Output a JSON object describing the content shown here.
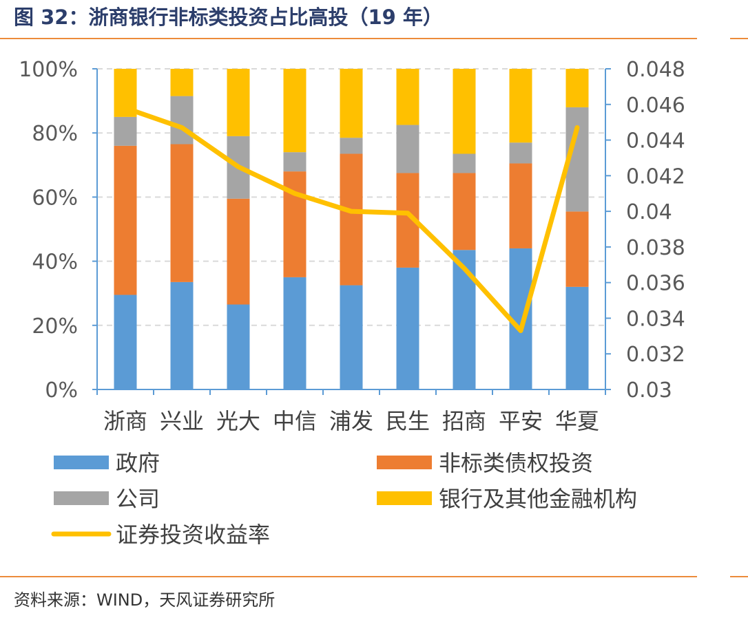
{
  "header": {
    "title": "图 32：浙商银行非标类投资占比高投（19 年）"
  },
  "footer": {
    "source": "资料来源：WIND，天风证券研究所"
  },
  "chart_data": {
    "type": "bar",
    "stacked": true,
    "percent_stacked": true,
    "categories": [
      "浙商",
      "兴业",
      "光大",
      "中信",
      "浦发",
      "民生",
      "招商",
      "平安",
      "华夏"
    ],
    "series": [
      {
        "name": "政府",
        "color": "#5b9bd5",
        "values": [
          29.5,
          33.5,
          26.5,
          35.0,
          32.5,
          38.0,
          43.5,
          44.0,
          32.0
        ]
      },
      {
        "name": "非标类债权投资",
        "color": "#ed7d31",
        "values": [
          46.5,
          43.0,
          33.0,
          33.0,
          41.0,
          29.5,
          24.0,
          26.5,
          23.5
        ]
      },
      {
        "name": "公司",
        "color": "#a5a5a5",
        "values": [
          9.0,
          15.0,
          19.5,
          6.0,
          5.0,
          15.0,
          6.0,
          6.5,
          32.5
        ]
      },
      {
        "name": "银行及其他金融机构",
        "color": "#ffc000",
        "values": [
          15.0,
          8.5,
          21.0,
          26.0,
          21.5,
          17.5,
          26.5,
          23.0,
          12.0
        ]
      }
    ],
    "line_series": {
      "name": "证券投资收益率",
      "color": "#ffc000",
      "axis": "right",
      "values": [
        0.0458,
        0.0447,
        0.0425,
        0.041,
        0.04,
        0.0399,
        0.0368,
        0.0333,
        0.0447
      ]
    },
    "y_left": {
      "min": 0,
      "max": 100,
      "ticks": [
        "0%",
        "20%",
        "40%",
        "60%",
        "80%",
        "100%"
      ]
    },
    "y_right": {
      "min": 0.03,
      "max": 0.048,
      "ticks": [
        "0.03",
        "0.032",
        "0.034",
        "0.036",
        "0.038",
        "0.04",
        "0.042",
        "0.044",
        "0.046",
        "0.048"
      ]
    },
    "grid": true,
    "legend_position": "bottom"
  }
}
